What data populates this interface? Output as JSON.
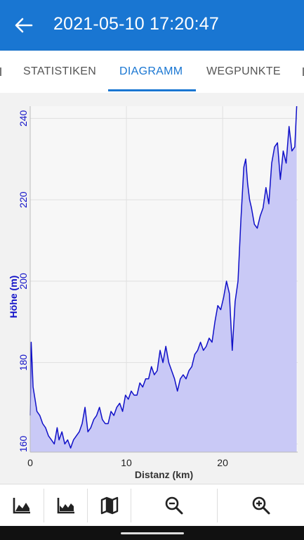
{
  "appbar": {
    "title": "2021-05-10 17:20:47",
    "back_icon": "arrow-back-icon"
  },
  "tabs": [
    {
      "label": "STATISTIKEN",
      "active": false
    },
    {
      "label": "DIAGRAMM",
      "active": true
    },
    {
      "label": "WEGPUNKTE",
      "active": false
    }
  ],
  "toolbar": {
    "icons": [
      "elevation-profile-icon",
      "speed-profile-icon",
      "map-icon",
      "zoom-out-icon",
      "zoom-in-icon"
    ]
  },
  "colors": {
    "primary": "#1976d2",
    "line": "#1010c8",
    "fill": "#c9c9f6"
  },
  "chart_data": {
    "type": "area",
    "xlabel": "Distanz (km)",
    "ylabel": "Höhe (m)",
    "xlim": [
      0,
      27.8
    ],
    "ylim": [
      158,
      243
    ],
    "xticks": [
      0,
      10,
      20
    ],
    "yticks": [
      160,
      180,
      200,
      220,
      240
    ],
    "grid": true,
    "series": [
      {
        "x": [
          0,
          0.1,
          0.2,
          0.3,
          0.5,
          0.7,
          1.0,
          1.3,
          1.6,
          1.9,
          2.2,
          2.5,
          2.8,
          3.0,
          3.3,
          3.6,
          3.9,
          4.2,
          4.5,
          4.8,
          5.1,
          5.4,
          5.7,
          6.0,
          6.3,
          6.6,
          6.9,
          7.2,
          7.5,
          7.8,
          8.1,
          8.4,
          8.7,
          9.0,
          9.3,
          9.6,
          9.9,
          10.2,
          10.5,
          10.8,
          11.1,
          11.4,
          11.7,
          12.0,
          12.3,
          12.6,
          12.9,
          13.2,
          13.5,
          13.8,
          14.1,
          14.4,
          14.7,
          15.0,
          15.3,
          15.6,
          15.9,
          16.2,
          16.5,
          16.8,
          17.1,
          17.4,
          17.7,
          18.0,
          18.3,
          18.6,
          18.9,
          19.2,
          19.5,
          19.8,
          20.1,
          20.4,
          20.7,
          21.0,
          21.3,
          21.6,
          21.9,
          22.2,
          22.4,
          22.6,
          22.8,
          23.0,
          23.3,
          23.6,
          23.9,
          24.2,
          24.5,
          24.8,
          25.1,
          25.4,
          25.7,
          26.0,
          26.3,
          26.6,
          26.9,
          27.2,
          27.5,
          27.7
        ],
        "y": [
          167,
          185,
          180,
          174,
          171,
          168,
          167,
          165,
          164,
          162,
          161,
          160,
          164,
          161,
          163,
          160,
          161,
          159,
          161,
          162,
          163,
          165,
          169,
          163,
          164,
          166,
          167,
          169,
          166,
          165,
          165,
          168,
          167,
          169,
          170,
          168,
          172,
          171,
          173,
          172,
          172,
          175,
          174,
          176,
          176,
          179,
          177,
          178,
          183,
          180,
          184,
          180,
          178,
          176,
          173,
          176,
          177,
          176,
          178,
          179,
          182,
          183,
          185,
          183,
          184,
          186,
          185,
          190,
          194,
          193,
          196,
          200,
          197,
          183,
          195,
          200,
          215,
          228,
          230,
          224,
          220,
          218,
          214,
          213,
          216,
          218,
          223,
          219,
          229,
          233,
          234,
          225,
          232,
          229,
          238,
          232,
          233,
          243
        ]
      }
    ]
  }
}
